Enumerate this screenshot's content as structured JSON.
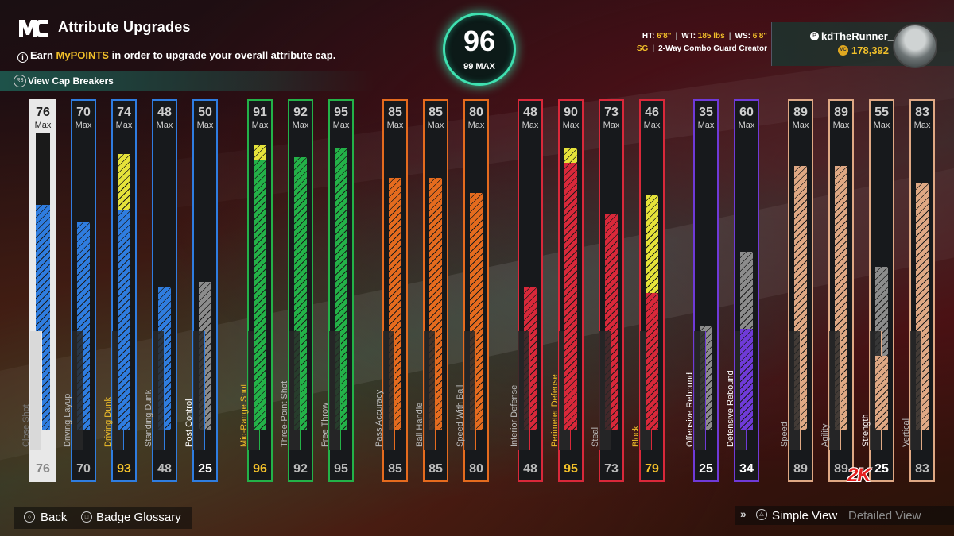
{
  "header": {
    "logo_text": "MC",
    "title": "Attribute Upgrades",
    "subtitle_pre": "Earn ",
    "subtitle_hl": "MyPOINTS",
    "subtitle_post": " in order to upgrade your overall attribute cap.",
    "cap_breakers": "View Cap Breakers"
  },
  "overall": {
    "value": "96",
    "max_label": "99 MAX"
  },
  "player": {
    "ht_label": "HT: ",
    "ht": "6'8\"",
    "wt_label": "WT: ",
    "wt": "185 lbs",
    "ws_label": "WS: ",
    "ws": "6'8\"",
    "position": "SG",
    "build": "2-Way Combo Guard Creator",
    "username": "kdTheRunner_",
    "vc": "178,392"
  },
  "max_word": "Max",
  "attributes": [
    {
      "name": "Close Shot",
      "max": 76,
      "current": 76,
      "color": "#e8e8e8",
      "stripe": "blue",
      "fill_top": 76,
      "highlight": 0
    },
    {
      "name": "Driving Layup",
      "max": 70,
      "current": 70,
      "color": "#2f7de0",
      "stripe": "blue",
      "fill_top": 70,
      "highlight": 0
    },
    {
      "name": "Driving Dunk",
      "max": 74,
      "current": 93,
      "color": "#2f7de0",
      "stripe": "blue",
      "fill_top": 74,
      "highlight": 93,
      "hl_color": "yellow"
    },
    {
      "name": "Standing Dunk",
      "max": 48,
      "current": 48,
      "color": "#2f7de0",
      "stripe": "blue",
      "fill_top": 48,
      "highlight": 0
    },
    {
      "name": "Post Control",
      "max": 50,
      "current": 25,
      "color": "#2f7de0",
      "stripe": "gray",
      "fill_top": 50,
      "highlight": 0
    },
    {
      "name": "Mid-Range Shot",
      "max": 91,
      "current": 96,
      "color": "#23b248",
      "stripe": "green",
      "fill_top": 91,
      "highlight": 96,
      "hl_color": "yellow"
    },
    {
      "name": "Three-Point Shot",
      "max": 92,
      "current": 92,
      "color": "#23b248",
      "stripe": "green",
      "fill_top": 92,
      "highlight": 0
    },
    {
      "name": "Free Throw",
      "max": 95,
      "current": 95,
      "color": "#23b248",
      "stripe": "green",
      "fill_top": 95,
      "highlight": 0
    },
    {
      "name": "Pass Accuracy",
      "max": 85,
      "current": 85,
      "color": "#e56b1e",
      "stripe": "orange",
      "fill_top": 85,
      "highlight": 0
    },
    {
      "name": "Ball Handle",
      "max": 85,
      "current": 85,
      "color": "#e56b1e",
      "stripe": "orange",
      "fill_top": 85,
      "highlight": 0
    },
    {
      "name": "Speed With Ball",
      "max": 80,
      "current": 80,
      "color": "#e56b1e",
      "stripe": "orange",
      "fill_top": 80,
      "highlight": 0
    },
    {
      "name": "Interior Defense",
      "max": 48,
      "current": 48,
      "color": "#d9283a",
      "stripe": "red",
      "fill_top": 48,
      "highlight": 0
    },
    {
      "name": "Perimeter Defense",
      "max": 90,
      "current": 95,
      "color": "#d9283a",
      "stripe": "red",
      "fill_top": 90,
      "highlight": 95,
      "hl_color": "yellow"
    },
    {
      "name": "Steal",
      "max": 73,
      "current": 73,
      "color": "#d9283a",
      "stripe": "red",
      "fill_top": 73,
      "highlight": 0
    },
    {
      "name": "Block",
      "max": 46,
      "current": 79,
      "color": "#d9283a",
      "stripe": "red",
      "fill_top": 46,
      "highlight": 79,
      "hl_color": "yellow"
    },
    {
      "name": "Offensive Rebound",
      "max": 35,
      "current": 25,
      "color": "#6f3ad8",
      "stripe": "gray",
      "fill_top": 35,
      "highlight": 0
    },
    {
      "name": "Defensive Rebound",
      "max": 60,
      "current": 34,
      "color": "#6f3ad8",
      "stripe": "purple",
      "fill_top": 34,
      "highlight": 60,
      "hl_color": "gray"
    },
    {
      "name": "Speed",
      "max": 89,
      "current": 89,
      "color": "#dfa884",
      "stripe": "tan",
      "fill_top": 89,
      "highlight": 0
    },
    {
      "name": "Agility",
      "max": 89,
      "current": 89,
      "color": "#dfa884",
      "stripe": "tan",
      "fill_top": 89,
      "highlight": 0
    },
    {
      "name": "Strength",
      "max": 55,
      "current": 25,
      "color": "#dfa884",
      "stripe": "tan",
      "fill_top": 25,
      "highlight": 55,
      "hl_color": "gray"
    },
    {
      "name": "Vertical",
      "max": 83,
      "current": 83,
      "color": "#dfa884",
      "stripe": "tan",
      "fill_top": 83,
      "highlight": 0
    }
  ],
  "footer": {
    "back": "Back",
    "badge_glossary": "Badge Glossary",
    "simple_view": "Simple View",
    "detailed_view": "Detailed View",
    "brand": "2K"
  }
}
